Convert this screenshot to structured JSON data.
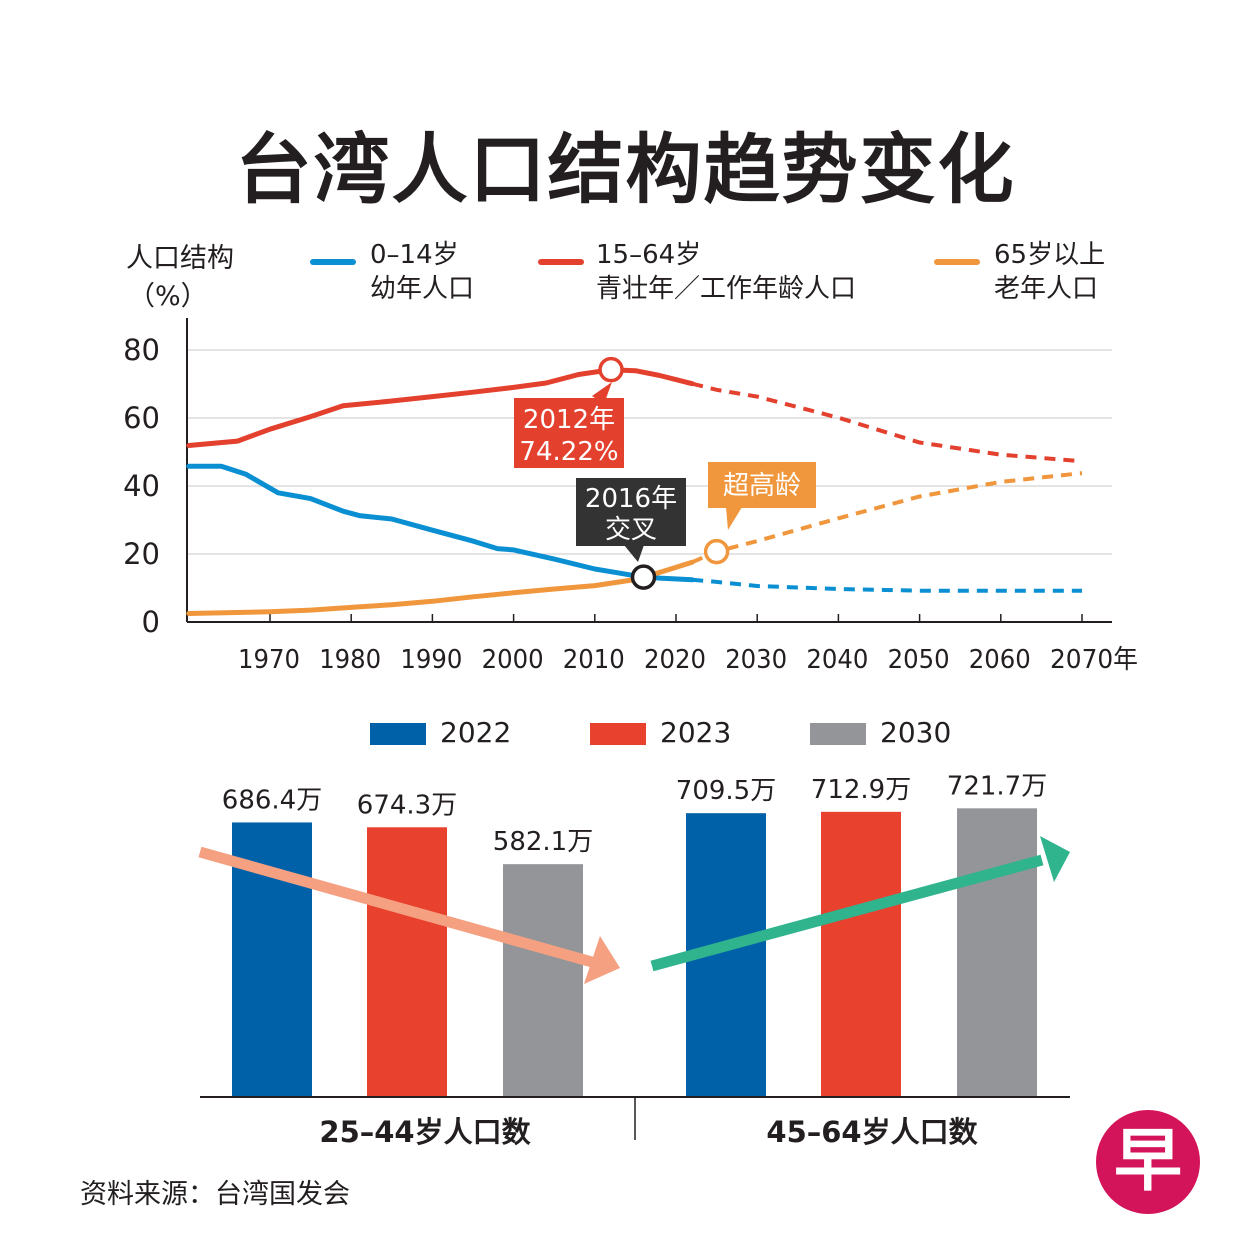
{
  "title": "台湾人口结构趋势变化",
  "source": "资料来源：台湾国发会",
  "logo_text": "早",
  "colors": {
    "blue": "#0a8fd2",
    "red": "#e3402e",
    "orange": "#f0963c",
    "bar2022": "#0061a8",
    "bar2023": "#e8412e",
    "bar2030": "#939598",
    "arrowDown": "#f4a081",
    "arrowUp": "#2fb48e",
    "annRed": "#e3402e",
    "annDark": "#333333",
    "annOrange": "#f0963c"
  },
  "chart_data": [
    {
      "type": "line",
      "ylabel": "人口结构",
      "yunit": "（%）",
      "xlim": [
        1960,
        2072
      ],
      "ylim": [
        0,
        80
      ],
      "yticks": [
        "0",
        "20",
        "40",
        "60",
        "80"
      ],
      "xticks": [
        "1970",
        "1980",
        "1990",
        "2000",
        "2010",
        "2020",
        "2030",
        "2040",
        "2050",
        "2060",
        "2070年"
      ],
      "xtick_values": [
        1970,
        1980,
        1990,
        2000,
        2010,
        2020,
        2030,
        2040,
        2050,
        2060,
        2070
      ],
      "grid": true,
      "projection_start": 2022,
      "series": [
        {
          "name": "0–14岁",
          "desc": "幼年人口",
          "color": "#0a8fd2",
          "x": [
            1960,
            1964,
            1967,
            1971,
            1975,
            1979,
            1981,
            1985,
            1990,
            1995,
            1998,
            2000,
            2005,
            2010,
            2012,
            2015,
            2018,
            2022,
            2025,
            2030,
            2040,
            2050,
            2060,
            2070
          ],
          "y": [
            45.8,
            45.8,
            43.5,
            38.0,
            36.3,
            32.6,
            31.3,
            30.3,
            27.0,
            23.8,
            21.6,
            21.2,
            18.5,
            15.6,
            14.8,
            13.6,
            12.9,
            12.4,
            11.8,
            10.6,
            9.7,
            9.2,
            9.2,
            9.2
          ]
        },
        {
          "name": "15–64岁",
          "desc": "青壮年／工作年龄人口",
          "color": "#e3402e",
          "x": [
            1960,
            1966,
            1970,
            1975,
            1979,
            1985,
            1990,
            1995,
            2000,
            2004,
            2008,
            2012,
            2015,
            2018,
            2022,
            2025,
            2030,
            2040,
            2050,
            2060,
            2070
          ],
          "y": [
            51.9,
            53.2,
            56.7,
            60.4,
            63.6,
            65.0,
            66.3,
            67.6,
            69.0,
            70.3,
            72.8,
            74.22,
            73.9,
            72.5,
            70.1,
            68.3,
            66.3,
            60.1,
            52.8,
            49.2,
            47.3
          ]
        },
        {
          "name": "65岁以上",
          "desc": "老年人口",
          "color": "#f0963c",
          "x": [
            1960,
            1970,
            1975,
            1980,
            1985,
            1990,
            1995,
            2000,
            2005,
            2010,
            2015,
            2018,
            2022,
            2025,
            2030,
            2040,
            2050,
            2060,
            2070
          ],
          "y": [
            2.5,
            3.0,
            3.5,
            4.3,
            5.1,
            6.1,
            7.4,
            8.6,
            9.7,
            10.7,
            12.5,
            14.6,
            17.6,
            20.7,
            23.8,
            30.5,
            36.9,
            41.2,
            43.8
          ]
        }
      ],
      "markers": [
        {
          "x": 2012,
          "y": 74.22,
          "series": "15–64岁"
        },
        {
          "x": 2016,
          "y": 13.2,
          "series": "交叉"
        },
        {
          "x": 2025,
          "y": 20.7,
          "series": "65岁以上"
        }
      ],
      "annotations": [
        {
          "lines": [
            "2012年",
            "74.22%"
          ]
        },
        {
          "lines": [
            "2016年",
            "交叉"
          ]
        },
        {
          "lines": [
            "超高龄"
          ]
        }
      ]
    },
    {
      "type": "bar",
      "legend": [
        "2022",
        "2023",
        "2030"
      ],
      "groups": [
        {
          "label": "25–44岁人口数",
          "values": [
            686.4,
            674.3,
            582.1
          ],
          "value_labels": [
            "686.4万",
            "674.3万",
            "582.1万"
          ]
        },
        {
          "label": "45–64岁人口数",
          "values": [
            709.5,
            712.9,
            721.7
          ],
          "value_labels": [
            "709.5万",
            "712.9万",
            "721.7万"
          ]
        }
      ],
      "unit": "万"
    }
  ]
}
